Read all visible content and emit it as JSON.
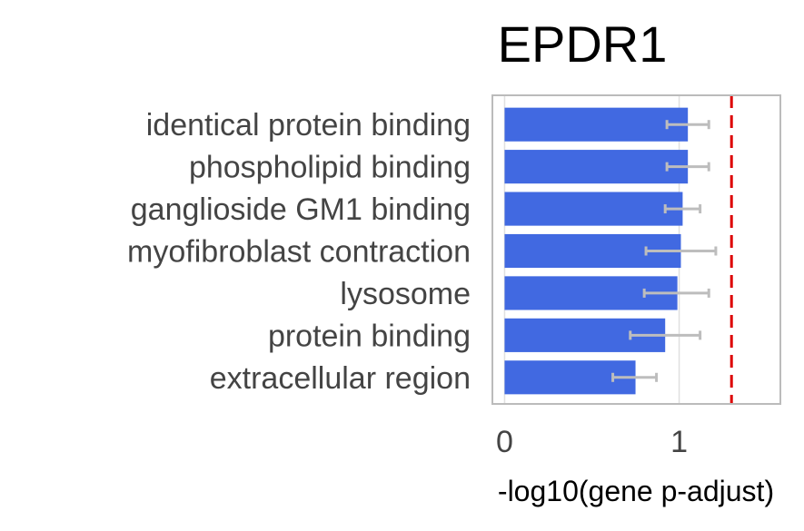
{
  "chart_data": {
    "type": "bar",
    "orientation": "horizontal",
    "title": "EPDR1",
    "xlabel": "-log10(gene p-adjust)",
    "ylabel": "",
    "categories": [
      "identical protein binding",
      "phospholipid binding",
      "ganglioside GM1 binding",
      "myofibroblast contraction",
      "lysosome",
      "protein binding",
      "extracellular region"
    ],
    "values": [
      1.05,
      1.05,
      1.02,
      1.01,
      0.99,
      0.92,
      0.75
    ],
    "error_low": [
      0.93,
      0.93,
      0.92,
      0.81,
      0.8,
      0.72,
      0.62
    ],
    "error_high": [
      1.17,
      1.17,
      1.12,
      1.21,
      1.17,
      1.12,
      0.87
    ],
    "threshold": 1.3,
    "xlim": [
      -0.07,
      1.58
    ],
    "xticks": [
      0,
      1
    ],
    "xtick_labels": [
      "0",
      "1"
    ],
    "grid": "vertical",
    "colors": {
      "bar": "#4169e1",
      "error_bar": "#bdbdbd",
      "threshold": "#dd0000",
      "frame": "#bbbbbb",
      "grid": "#e0e0e0"
    }
  }
}
